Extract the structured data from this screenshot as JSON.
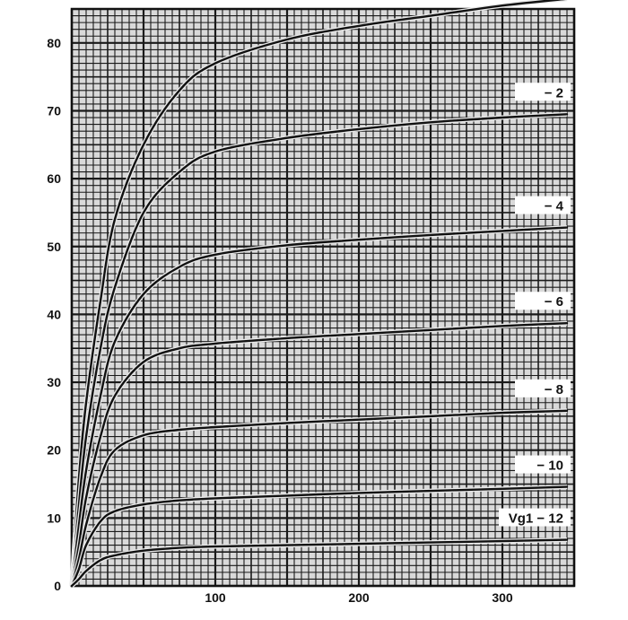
{
  "chart_data": {
    "type": "line",
    "title": "",
    "xlabel": "",
    "ylabel": "",
    "xlim": [
      0,
      350
    ],
    "ylim": [
      0,
      85
    ],
    "x_ticks": [
      "100",
      "200",
      "300"
    ],
    "y_ticks": [
      "0",
      "10",
      "20",
      "30",
      "40",
      "50",
      "60",
      "70",
      "80"
    ],
    "grid": true,
    "x": [
      0,
      5,
      10,
      20,
      30,
      50,
      75,
      100,
      150,
      200,
      250,
      300,
      345
    ],
    "series": [
      {
        "label": "",
        "values": [
          0,
          16,
          27,
          42,
          54,
          65,
          73,
          77,
          80.5,
          82.5,
          84,
          85.5,
          86.5
        ]
      },
      {
        "label": "− 2",
        "values": [
          0,
          12,
          22,
          35,
          44,
          55,
          61,
          64,
          66,
          67.3,
          68.3,
          69,
          69.5
        ]
      },
      {
        "label": "− 4",
        "values": [
          0,
          9,
          17,
          28,
          36,
          43,
          47,
          48.8,
          50.2,
          51,
          51.7,
          52.3,
          52.8
        ]
      },
      {
        "label": "− 6",
        "values": [
          0,
          6,
          13,
          22,
          28,
          33,
          35,
          35.7,
          36.5,
          37.1,
          37.7,
          38.3,
          38.7
        ]
      },
      {
        "label": "− 8",
        "values": [
          0,
          4,
          9,
          16,
          20,
          22.2,
          23,
          23.4,
          24,
          24.5,
          25,
          25.5,
          25.8
        ]
      },
      {
        "label": "− 10",
        "values": [
          0,
          2.5,
          6,
          9.5,
          11,
          12,
          12.6,
          12.9,
          13.3,
          13.7,
          14,
          14.3,
          14.6
        ]
      },
      {
        "label": "Vg1 − 12",
        "values": [
          0,
          1,
          2.2,
          3.8,
          4.5,
          5.2,
          5.6,
          5.8,
          6,
          6.2,
          6.4,
          6.6,
          6.8
        ]
      }
    ]
  }
}
